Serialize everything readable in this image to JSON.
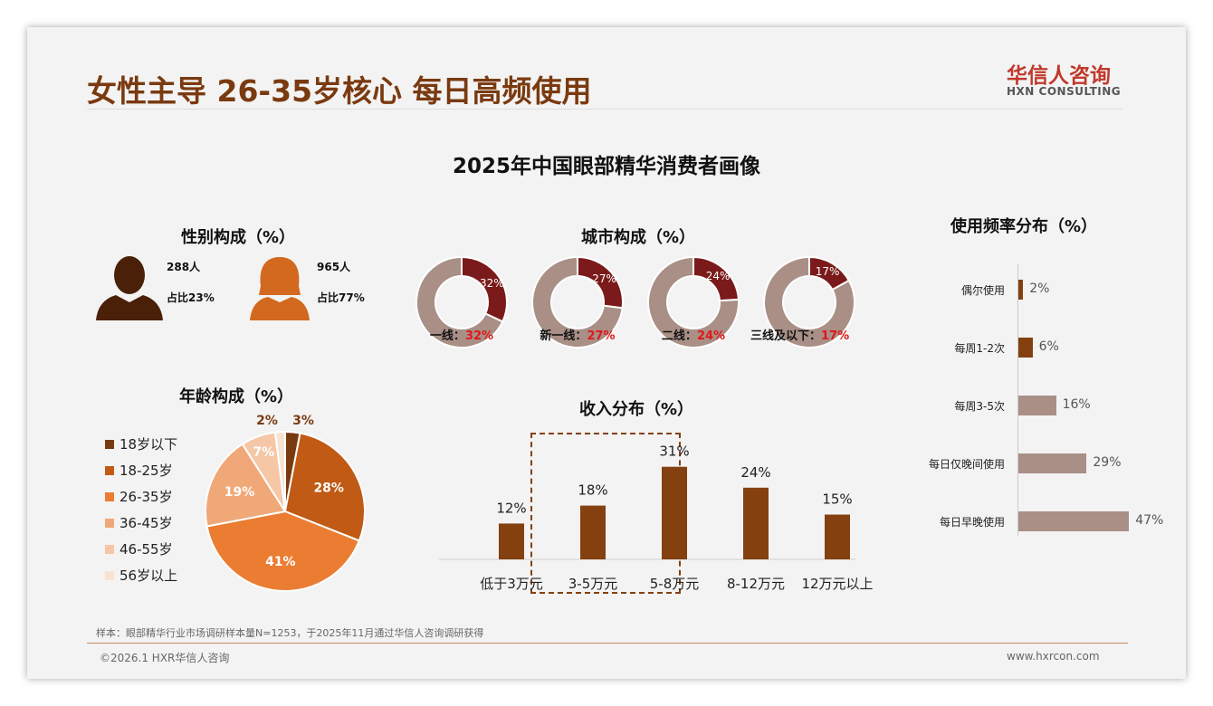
{
  "header": {
    "title": "女性主导 26-35岁核心 每日高频使用",
    "logo_cn": "华信人咨询",
    "logo_en": "HXN CONSULTING"
  },
  "main_title": "2025年中国眼部精华消费者画像",
  "gender": {
    "title": "性别构成（%）",
    "male": {
      "count": "288人",
      "share": "占比23%"
    },
    "female": {
      "count": "965人",
      "share": "占比77%"
    }
  },
  "city": {
    "title": "城市构成（%）",
    "items": [
      {
        "label": "一线：",
        "value": "32%",
        "pct": 32
      },
      {
        "label": "新一线：",
        "value": "27%",
        "pct": 27
      },
      {
        "label": "二线：",
        "value": "24%",
        "pct": 24
      },
      {
        "label": "三线及以下：",
        "value": "17%",
        "pct": 17
      }
    ],
    "colors": {
      "main": "#7b1a1a",
      "rest": "#a98f86",
      "value_text": "#e01818"
    }
  },
  "age": {
    "title": "年龄构成（%）",
    "items": [
      {
        "label": "18岁以下",
        "value": 3,
        "text": "3%",
        "color": "#7a3a10"
      },
      {
        "label": "18-25岁",
        "value": 28,
        "text": "28%",
        "color": "#c05a14"
      },
      {
        "label": "26-35岁",
        "value": 41,
        "text": "41%",
        "color": "#ea7d32"
      },
      {
        "label": "36-45岁",
        "value": 19,
        "text": "19%",
        "color": "#f0a878"
      },
      {
        "label": "46-55岁",
        "value": 7,
        "text": "7%",
        "color": "#f5c7a7"
      },
      {
        "label": "56岁以上",
        "value": 2,
        "text": "2%",
        "color": "#f8e2d2"
      }
    ]
  },
  "chart_data": {
    "type": "bar",
    "title": "收入分布（%）",
    "categories": [
      "低于3万元",
      "3-5万元",
      "5-8万元",
      "8-12万元",
      "12万元以上"
    ],
    "values": [
      12,
      18,
      31,
      24,
      15
    ],
    "labels": [
      "12%",
      "18%",
      "31%",
      "24%",
      "15%"
    ],
    "color": "#85400f"
  },
  "frequency": {
    "title": "使用频率分布（%）",
    "items": [
      {
        "label": "偶尔使用",
        "value": 2,
        "text": "2%",
        "color": "#85400f"
      },
      {
        "label": "每周1-2次",
        "value": 6,
        "text": "6%",
        "color": "#85400f"
      },
      {
        "label": "每周3-5次",
        "value": 16,
        "text": "16%",
        "color": "#a98f86"
      },
      {
        "label": "每日仅晚间使用",
        "value": 29,
        "text": "29%",
        "color": "#a98f86"
      },
      {
        "label": "每日早晚使用",
        "value": 47,
        "text": "47%",
        "color": "#a98f86"
      }
    ]
  },
  "footer": {
    "note": "样本：眼部精华行业市场调研样本量N=1253，于2025年11月通过华信人咨询调研获得",
    "copyright": "©2026.1 HXR华信人咨询",
    "website": "www.hxrcon.com"
  }
}
